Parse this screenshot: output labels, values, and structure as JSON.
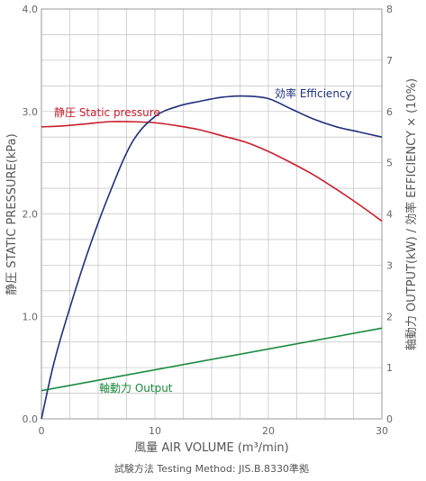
{
  "chart_data": {
    "type": "line",
    "xlabel": "風量 AIR VOLUME (m³/min)",
    "ylabel_left": "静圧 STATIC PRESSURE(kPa)",
    "ylabel_right": "軸動力 OUTPUT(kW) / 効率 EFFICIENCY × (10%)",
    "xlim": [
      0,
      30
    ],
    "ylim_left": [
      0,
      4.0
    ],
    "ylim_right": [
      0,
      8
    ],
    "x_ticks": [
      "0",
      "10",
      "20",
      "30"
    ],
    "y_ticks_left": [
      "0.0",
      "1.0",
      "2.0",
      "3.0",
      "4.0"
    ],
    "y_ticks_right": [
      "0",
      "1",
      "2",
      "3",
      "4",
      "5",
      "6",
      "7",
      "8"
    ],
    "grid": true,
    "note": "試験方法 Testing Method: JIS.B.8330準拠",
    "series": [
      {
        "name": "静圧 Static pressure",
        "axis": "left",
        "color": "#c81e2b",
        "x": [
          0,
          2,
          4,
          6,
          8,
          10,
          12,
          14,
          16,
          18,
          20,
          22,
          24,
          26,
          28,
          30
        ],
        "y": [
          2.85,
          2.86,
          2.88,
          2.9,
          2.9,
          2.89,
          2.86,
          2.82,
          2.76,
          2.7,
          2.61,
          2.5,
          2.38,
          2.24,
          2.09,
          1.93
        ]
      },
      {
        "name": "効率 Efficiency",
        "axis": "right",
        "color": "#1f2f7a",
        "x": [
          0,
          1,
          2,
          4,
          6,
          8,
          10,
          12,
          14,
          16,
          18,
          20,
          22,
          24,
          26,
          28,
          30
        ],
        "y": [
          0.0,
          1.0,
          1.8,
          3.2,
          4.4,
          5.4,
          5.9,
          6.1,
          6.2,
          6.28,
          6.3,
          6.25,
          6.05,
          5.85,
          5.7,
          5.6,
          5.5
        ]
      },
      {
        "name": "軸動力 Output",
        "axis": "right",
        "color": "#1a8a3e",
        "x": [
          0,
          30
        ],
        "y": [
          0.55,
          1.77
        ]
      }
    ]
  }
}
